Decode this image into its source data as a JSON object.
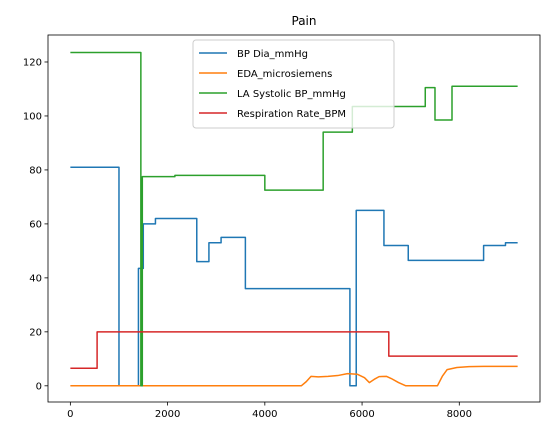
{
  "chart_data": {
    "type": "line",
    "title": "Pain",
    "xlabel": "",
    "ylabel": "",
    "xlim": [
      -460,
      9660
    ],
    "ylim": [
      -6,
      130
    ],
    "x_ticks": [
      0,
      2000,
      4000,
      6000,
      8000
    ],
    "y_ticks": [
      0,
      20,
      40,
      60,
      80,
      100,
      120
    ],
    "x_tick_labels": [
      "0",
      "2000",
      "4000",
      "6000",
      "8000"
    ],
    "y_tick_labels": [
      "0",
      "20",
      "40",
      "60",
      "80",
      "100",
      "120"
    ],
    "grid": false,
    "legend_position": "top-center",
    "series": [
      {
        "name": "BP Dia_mmHg",
        "color": "#1f77b4",
        "points": [
          [
            0,
            81
          ],
          [
            1000,
            81
          ],
          [
            1000,
            0
          ],
          [
            1400,
            0
          ],
          [
            1400,
            43.5
          ],
          [
            1500,
            43.5
          ],
          [
            1500,
            60
          ],
          [
            1750,
            60
          ],
          [
            1750,
            62
          ],
          [
            2600,
            62
          ],
          [
            2600,
            46
          ],
          [
            2850,
            46
          ],
          [
            2850,
            53
          ],
          [
            3100,
            53
          ],
          [
            3100,
            55
          ],
          [
            3600,
            55
          ],
          [
            3600,
            36
          ],
          [
            5750,
            36
          ],
          [
            5750,
            0
          ],
          [
            5880,
            0
          ],
          [
            5880,
            65
          ],
          [
            6450,
            65
          ],
          [
            6450,
            52
          ],
          [
            6950,
            52
          ],
          [
            6950,
            46.5
          ],
          [
            8500,
            46.5
          ],
          [
            8500,
            52
          ],
          [
            8950,
            52
          ],
          [
            8950,
            53
          ],
          [
            9200,
            53
          ]
        ]
      },
      {
        "name": "EDA_microsiemens",
        "color": "#ff7f0e",
        "points": [
          [
            0,
            0
          ],
          [
            4750,
            0
          ],
          [
            4850,
            1.5
          ],
          [
            4950,
            3.5
          ],
          [
            5100,
            3.3
          ],
          [
            5300,
            3.5
          ],
          [
            5500,
            3.8
          ],
          [
            5700,
            4.5
          ],
          [
            5900,
            4.3
          ],
          [
            6050,
            3.0
          ],
          [
            6150,
            1.2
          ],
          [
            6250,
            2.4
          ],
          [
            6350,
            3.4
          ],
          [
            6500,
            3.5
          ],
          [
            6600,
            2.7
          ],
          [
            6750,
            1.2
          ],
          [
            6900,
            0
          ],
          [
            7550,
            0
          ],
          [
            7650,
            3.5
          ],
          [
            7750,
            6.0
          ],
          [
            7950,
            6.8
          ],
          [
            8200,
            7.1
          ],
          [
            8500,
            7.2
          ],
          [
            9200,
            7.2
          ]
        ]
      },
      {
        "name": "LA Systolic BP_mmHg",
        "color": "#2ca02c",
        "points": [
          [
            0,
            123.5
          ],
          [
            1450,
            123.5
          ],
          [
            1450,
            0
          ],
          [
            1480,
            0
          ],
          [
            1480,
            77.5
          ],
          [
            2150,
            77.5
          ],
          [
            2150,
            78
          ],
          [
            4000,
            78
          ],
          [
            4000,
            72.5
          ],
          [
            5200,
            72.5
          ],
          [
            5200,
            94
          ],
          [
            5800,
            94
          ],
          [
            5800,
            103.5
          ],
          [
            7300,
            103.5
          ],
          [
            7300,
            110.5
          ],
          [
            7500,
            110.5
          ],
          [
            7500,
            98.5
          ],
          [
            7850,
            98.5
          ],
          [
            7850,
            111
          ],
          [
            9200,
            111
          ]
        ]
      },
      {
        "name": "Respiration Rate_BPM",
        "color": "#d62728",
        "points": [
          [
            0,
            6.5
          ],
          [
            550,
            6.5
          ],
          [
            550,
            20
          ],
          [
            6550,
            20
          ],
          [
            6550,
            11
          ],
          [
            9200,
            11
          ]
        ]
      }
    ]
  }
}
